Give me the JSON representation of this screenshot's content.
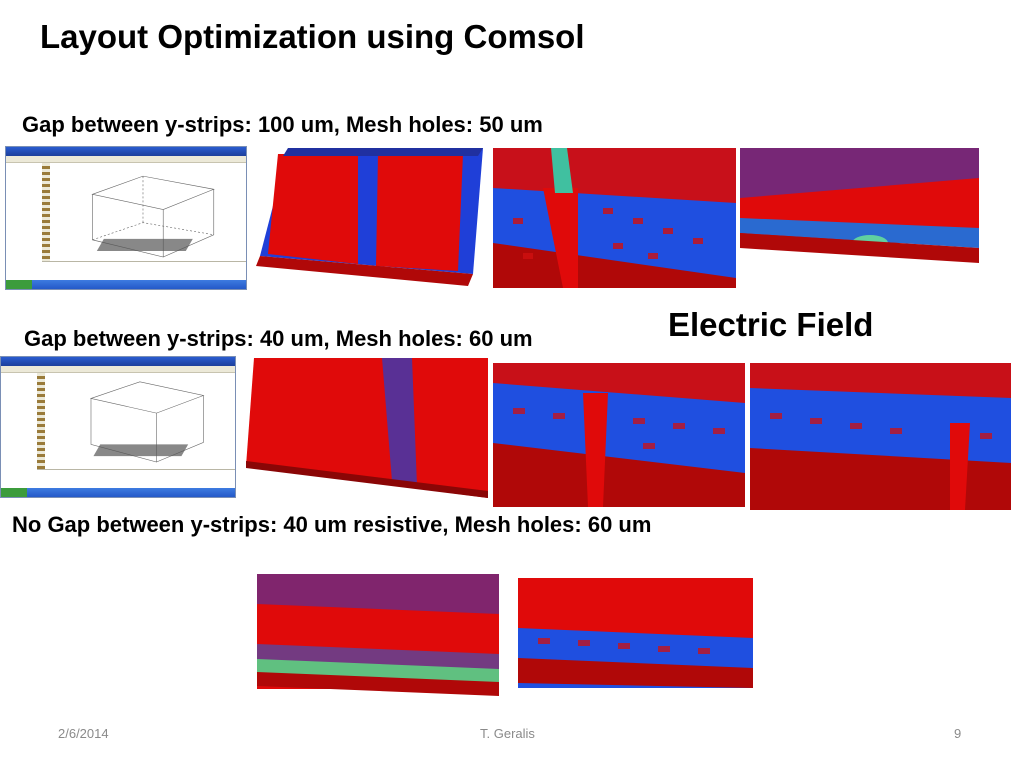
{
  "slide": {
    "title": "Layout Optimization using Comsol",
    "captions": {
      "row1": "Gap between y-strips:  100 um,  Mesh holes: 50 um",
      "row2": "Gap between y-strips:  40 um,  Mesh holes: 60 um",
      "row3": "No Gap between y-strips:  40 um resistive,  Mesh holes: 60 um"
    },
    "field_label": "Electric Field",
    "footer": {
      "date": "2/6/2014",
      "author": "T. Geralis",
      "page": "9"
    }
  },
  "colors": {
    "field_red": "#e00a0a",
    "field_blue": "#1f3fd8",
    "window_title_blue": "#1d3f9c",
    "footer_gray": "#8a8a8a"
  }
}
